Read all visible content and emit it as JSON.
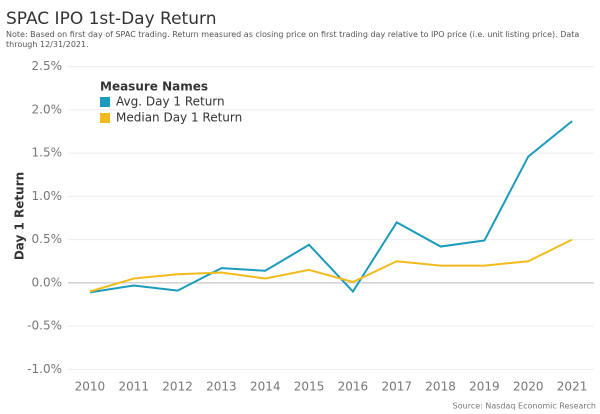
{
  "chart_data": {
    "type": "line",
    "title": "SPAC IPO 1st-Day Return",
    "subtitle": "Note: Based on first day of SPAC trading. Return measured as closing price on first trading day relative to IPO price (i.e. unit listing price). Data through 12/31/2021.",
    "y_label": "Day 1 Return",
    "legend_title": "Measure Names",
    "source": "Source: Nasdaq Economic Research",
    "categories": [
      "2010",
      "2011",
      "2012",
      "2013",
      "2014",
      "2015",
      "2016",
      "2017",
      "2018",
      "2019",
      "2020",
      "2021"
    ],
    "series": [
      {
        "name": "Avg. Day 1 Return",
        "color": "#1a9bbb",
        "values": [
          -0.11,
          -0.03,
          -0.09,
          0.17,
          0.14,
          0.44,
          -0.1,
          0.7,
          0.42,
          0.49,
          1.46,
          1.87
        ]
      },
      {
        "name": "Median Day 1 Return",
        "color": "#f2bb1d",
        "values": [
          -0.1,
          0.05,
          0.1,
          0.12,
          0.05,
          0.15,
          0.01,
          0.25,
          0.2,
          0.2,
          0.25,
          0.5
        ]
      }
    ],
    "ylim": [
      -1.1,
      2.6
    ],
    "yticks": [
      {
        "value": -1,
        "label": "-1.0%"
      },
      {
        "value": -0.5,
        "label": "-0.5%"
      },
      {
        "value": 0,
        "label": "0.0%"
      },
      {
        "value": 0.5,
        "label": "0.5%"
      },
      {
        "value": 1,
        "label": "1.0%"
      },
      {
        "value": 1.5,
        "label": "1.5%"
      },
      {
        "value": 2,
        "label": "2.0%"
      },
      {
        "value": 2.5,
        "label": "2.5%"
      }
    ],
    "grid": true
  }
}
